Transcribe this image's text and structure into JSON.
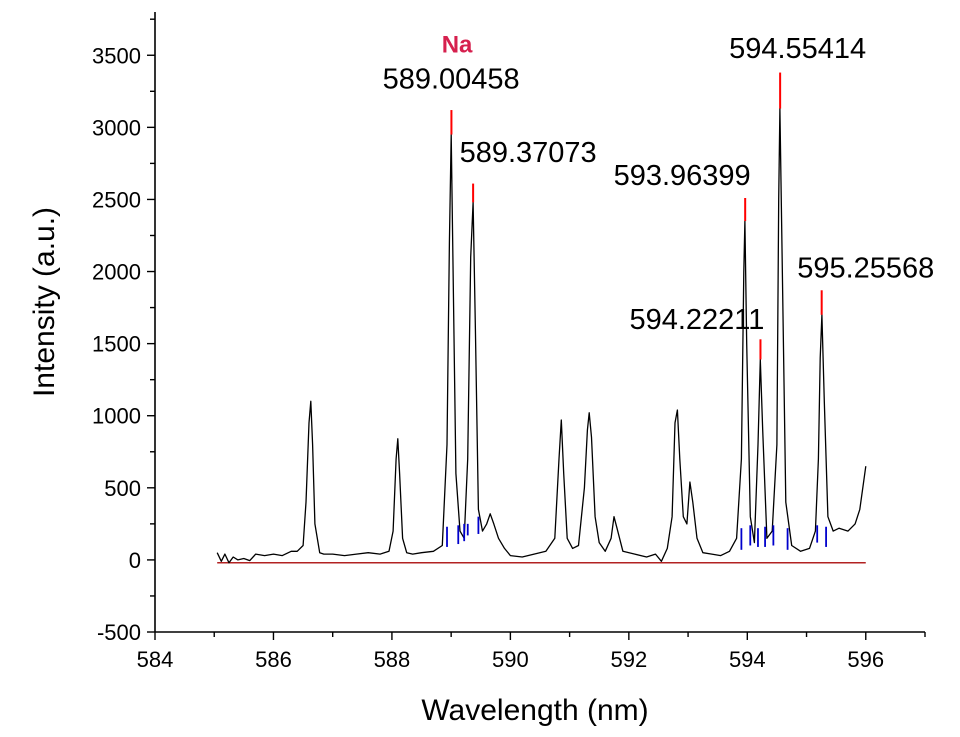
{
  "chart_data": {
    "type": "line",
    "xlabel": "Wavelength (nm)",
    "ylabel": "Intensity (a.u.)",
    "xlim": [
      584,
      597
    ],
    "ylim": [
      -500,
      3800
    ],
    "x_ticks": [
      584,
      586,
      588,
      590,
      592,
      594,
      596
    ],
    "x_tick_labels": [
      "584",
      "586",
      "588",
      "590",
      "592",
      "594",
      "596"
    ],
    "y_ticks": [
      -500,
      0,
      500,
      1000,
      1500,
      2000,
      2500,
      3000,
      3500
    ],
    "y_tick_labels": [
      "-500",
      "0",
      "500",
      "1000",
      "1500",
      "2000",
      "2500",
      "3000",
      "3500"
    ],
    "grid": false,
    "colors": {
      "spectrum": "#000000",
      "baseline": "#b22222",
      "peak_marker": "#ff0000",
      "fit_segments": "#0000cc",
      "element_label": "#d6204e"
    },
    "baseline": {
      "value": -20,
      "x_range": [
        585.05,
        596.0
      ]
    },
    "series": [
      {
        "x": [
          585.05,
          585.12,
          585.18,
          585.25,
          585.32,
          585.4,
          585.5,
          585.6,
          585.7,
          585.85,
          586.0,
          586.15,
          586.3,
          586.4,
          586.5,
          586.55,
          586.6,
          586.63,
          586.66,
          586.7,
          586.78,
          586.85,
          587.0,
          587.2,
          587.4,
          587.6,
          587.8,
          587.95,
          588.02,
          588.07,
          588.1,
          588.13,
          588.18,
          588.25,
          588.35,
          588.5,
          588.7,
          588.85,
          588.93,
          588.97,
          589.0,
          589.03,
          589.08,
          589.15,
          589.22,
          589.28,
          589.33,
          589.37,
          589.41,
          589.46,
          589.53,
          589.6,
          589.66,
          589.72,
          589.8,
          589.9,
          590.0,
          590.2,
          590.4,
          590.6,
          590.75,
          590.82,
          590.86,
          590.9,
          590.96,
          591.05,
          591.15,
          591.25,
          591.3,
          591.33,
          591.37,
          591.43,
          591.5,
          591.6,
          591.7,
          591.75,
          591.8,
          591.9,
          592.1,
          592.3,
          592.45,
          592.55,
          592.65,
          592.73,
          592.78,
          592.82,
          592.86,
          592.92,
          592.98,
          593.03,
          593.08,
          593.15,
          593.25,
          593.4,
          593.55,
          593.7,
          593.82,
          593.9,
          593.94,
          593.96,
          593.99,
          594.05,
          594.12,
          594.18,
          594.22,
          594.26,
          594.33,
          594.42,
          594.5,
          594.53,
          594.55,
          594.58,
          594.65,
          594.75,
          594.9,
          595.05,
          595.15,
          595.2,
          595.23,
          595.26,
          595.3,
          595.36,
          595.45,
          595.55,
          595.7,
          595.82,
          595.9,
          595.95,
          596.0
        ],
        "y": [
          50,
          -10,
          40,
          -20,
          20,
          0,
          10,
          -5,
          40,
          30,
          40,
          30,
          60,
          60,
          100,
          400,
          950,
          1100,
          800,
          250,
          50,
          40,
          40,
          30,
          40,
          50,
          40,
          60,
          200,
          700,
          840,
          600,
          150,
          50,
          40,
          50,
          60,
          100,
          800,
          2200,
          2950,
          2100,
          600,
          200,
          150,
          700,
          2100,
          2480,
          1600,
          350,
          200,
          250,
          320,
          250,
          150,
          80,
          30,
          20,
          40,
          60,
          150,
          700,
          970,
          600,
          150,
          80,
          100,
          500,
          900,
          1020,
          850,
          300,
          120,
          60,
          150,
          300,
          220,
          60,
          40,
          20,
          40,
          -10,
          80,
          300,
          950,
          1040,
          700,
          300,
          250,
          540,
          400,
          150,
          50,
          40,
          30,
          60,
          150,
          700,
          2000,
          2350,
          1500,
          300,
          120,
          800,
          1390,
          900,
          150,
          200,
          800,
          2500,
          3130,
          2300,
          400,
          100,
          60,
          80,
          200,
          700,
          1400,
          1700,
          1100,
          300,
          200,
          220,
          200,
          250,
          350,
          500,
          650
        ]
      }
    ],
    "annotations": [
      {
        "text": "589.00458",
        "x": 589.00458,
        "marker_top": 3120,
        "marker_bottom": 2950,
        "text_y": 3270,
        "text_x": 589.0,
        "anchor": "middle"
      },
      {
        "text": "589.37073",
        "x": 589.37073,
        "marker_top": 2610,
        "marker_bottom": 2480,
        "text_y": 2760,
        "text_x": 590.3,
        "anchor": "middle"
      },
      {
        "text": "593.96399",
        "x": 593.96399,
        "marker_top": 2510,
        "marker_bottom": 2350,
        "text_y": 2600,
        "text_x": 592.9,
        "anchor": "middle"
      },
      {
        "text": "594.22211",
        "x": 594.22211,
        "marker_top": 1530,
        "marker_bottom": 1390,
        "text_y": 1600,
        "text_x": 593.15,
        "anchor": "middle"
      },
      {
        "text": "594.55414",
        "x": 594.55414,
        "marker_top": 3380,
        "marker_bottom": 3130,
        "text_y": 3480,
        "text_x": 594.85,
        "anchor": "middle"
      },
      {
        "text": "595.25568",
        "x": 595.25568,
        "marker_top": 1870,
        "marker_bottom": 1700,
        "text_y": 1960,
        "text_x": 596.0,
        "anchor": "middle"
      }
    ],
    "element_label": {
      "text": "Na",
      "x": 589.1,
      "y": 3520
    },
    "fit_segments": [
      {
        "x": 588.93,
        "y0": 230,
        "y1": 90
      },
      {
        "x": 589.12,
        "y0": 240,
        "y1": 110
      },
      {
        "x": 589.22,
        "y0": 250,
        "y1": 130
      },
      {
        "x": 589.28,
        "y0": 250,
        "y1": 170
      },
      {
        "x": 589.46,
        "y0": 300,
        "y1": 180
      },
      {
        "x": 593.9,
        "y0": 220,
        "y1": 70
      },
      {
        "x": 594.05,
        "y0": 240,
        "y1": 100
      },
      {
        "x": 594.18,
        "y0": 220,
        "y1": 90
      },
      {
        "x": 594.3,
        "y0": 230,
        "y1": 90
      },
      {
        "x": 594.44,
        "y0": 240,
        "y1": 100
      },
      {
        "x": 594.68,
        "y0": 220,
        "y1": 70
      },
      {
        "x": 595.18,
        "y0": 240,
        "y1": 120
      },
      {
        "x": 595.33,
        "y0": 230,
        "y1": 90
      }
    ]
  }
}
